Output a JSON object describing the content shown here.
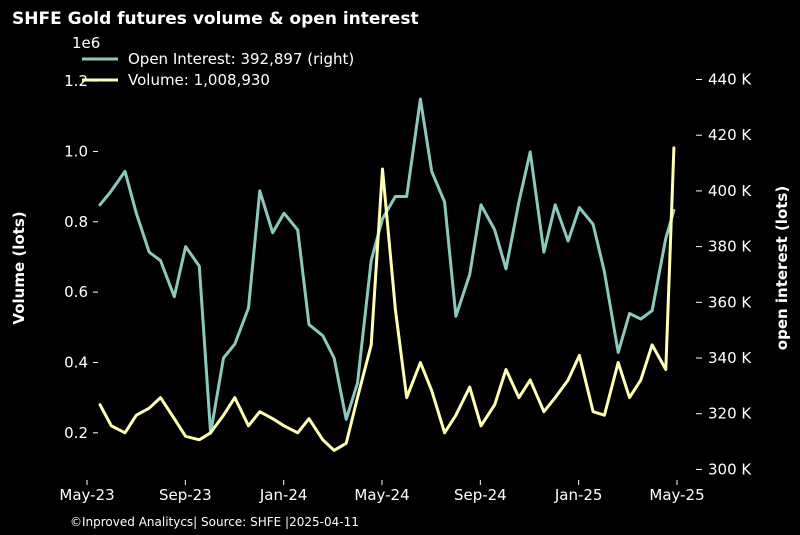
{
  "chart_data": {
    "type": "line",
    "title": "SHFE Gold futures volume & open interest",
    "footer": "©Inproved Analitycs| Source: SHFE |2025-04-11",
    "x_ticks": [
      "May-23",
      "Sep-23",
      "Jan-24",
      "May-24",
      "Sep-24",
      "Jan-25",
      "May-25"
    ],
    "x_range": [
      "2023-05-01",
      "2025-05-01"
    ],
    "left_axis": {
      "label": "Volume (lots)",
      "multiplier_label": "1e6",
      "ticks": [
        "0.2",
        "0.4",
        "0.6",
        "0.8",
        "1.0",
        "1.2"
      ],
      "tick_values": [
        0.2,
        0.4,
        0.6,
        0.8,
        1.0,
        1.2
      ],
      "ylim": [
        0.08,
        1.26
      ]
    },
    "right_axis": {
      "label": "open interest (lots)",
      "ticks": [
        "300 K",
        "320 K",
        "340 K",
        "360 K",
        "380 K",
        "400 K",
        "420 K",
        "440 K"
      ],
      "tick_values": [
        300,
        320,
        340,
        360,
        380,
        400,
        420,
        440
      ],
      "ylim": [
        298,
        447
      ]
    },
    "legend": {
      "placement": "top-left"
    },
    "series": [
      {
        "name": "Open Interest: 392,897 (right)",
        "axis": "right",
        "color": "#8cc9bd",
        "unit": "thousand lots",
        "x": [
          "2023-05-01",
          "2023-05-15",
          "2023-06-01",
          "2023-06-15",
          "2023-07-01",
          "2023-07-15",
          "2023-08-01",
          "2023-08-15",
          "2023-09-01",
          "2023-09-15",
          "2023-10-01",
          "2023-10-15",
          "2023-11-01",
          "2023-11-15",
          "2023-12-01",
          "2023-12-15",
          "2024-01-01",
          "2024-01-15",
          "2024-02-01",
          "2024-02-15",
          "2024-03-01",
          "2024-03-15",
          "2024-04-01",
          "2024-04-15",
          "2024-05-01",
          "2024-05-15",
          "2024-06-01",
          "2024-06-15",
          "2024-07-01",
          "2024-07-15",
          "2024-08-01",
          "2024-08-15",
          "2024-09-01",
          "2024-09-15",
          "2024-10-01",
          "2024-10-15",
          "2024-11-01",
          "2024-11-15",
          "2024-12-01",
          "2024-12-15",
          "2025-01-01",
          "2025-01-15",
          "2025-02-01",
          "2025-02-15",
          "2025-03-01",
          "2025-03-15",
          "2025-04-01",
          "2025-04-11"
        ],
        "values": [
          395,
          400,
          407,
          392,
          378,
          375,
          362,
          380,
          373,
          313,
          340,
          345,
          358,
          400,
          385,
          392,
          386,
          352,
          348,
          340,
          318,
          331,
          375,
          390,
          398,
          398,
          433,
          407,
          396,
          355,
          370,
          395,
          386,
          372,
          396,
          414,
          378,
          395,
          382,
          394,
          388,
          371,
          342,
          356,
          354,
          357,
          383,
          393
        ]
      },
      {
        "name": "Volume: 1,008,930",
        "axis": "left",
        "color": "#ffffb3",
        "unit": "lots (×1e6)",
        "x": [
          "2023-05-01",
          "2023-05-15",
          "2023-06-01",
          "2023-06-15",
          "2023-07-01",
          "2023-07-15",
          "2023-08-01",
          "2023-08-15",
          "2023-09-01",
          "2023-09-15",
          "2023-10-01",
          "2023-10-15",
          "2023-11-01",
          "2023-11-15",
          "2023-12-01",
          "2023-12-15",
          "2024-01-01",
          "2024-01-15",
          "2024-02-01",
          "2024-02-15",
          "2024-03-01",
          "2024-03-15",
          "2024-04-01",
          "2024-04-15",
          "2024-05-01",
          "2024-05-15",
          "2024-06-01",
          "2024-06-15",
          "2024-07-01",
          "2024-07-15",
          "2024-08-01",
          "2024-08-15",
          "2024-09-01",
          "2024-09-15",
          "2024-10-01",
          "2024-10-15",
          "2024-11-01",
          "2024-11-15",
          "2024-12-01",
          "2024-12-15",
          "2025-01-01",
          "2025-01-15",
          "2025-02-01",
          "2025-02-15",
          "2025-03-01",
          "2025-03-15",
          "2025-04-01",
          "2025-04-11"
        ],
        "values": [
          0.28,
          0.22,
          0.2,
          0.25,
          0.27,
          0.3,
          0.24,
          0.19,
          0.18,
          0.2,
          0.25,
          0.3,
          0.22,
          0.26,
          0.24,
          0.22,
          0.2,
          0.24,
          0.18,
          0.15,
          0.17,
          0.3,
          0.45,
          0.95,
          0.55,
          0.3,
          0.4,
          0.32,
          0.2,
          0.25,
          0.33,
          0.22,
          0.28,
          0.38,
          0.3,
          0.35,
          0.26,
          0.3,
          0.35,
          0.42,
          0.26,
          0.25,
          0.4,
          0.3,
          0.35,
          0.45,
          0.38,
          1.01
        ]
      }
    ]
  }
}
